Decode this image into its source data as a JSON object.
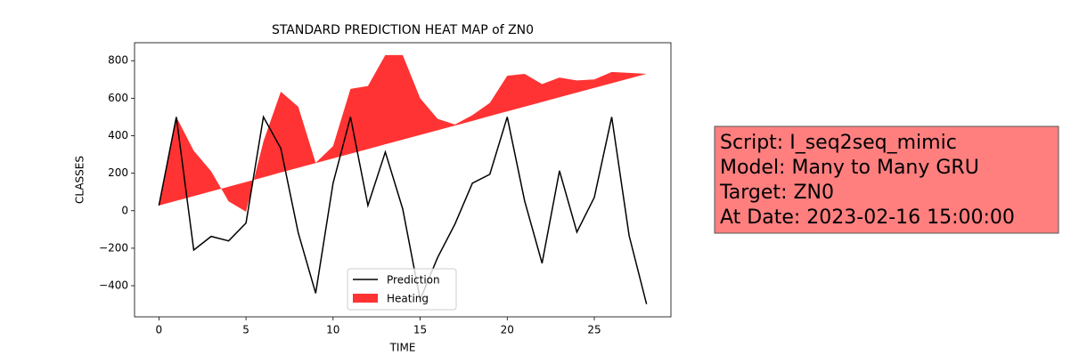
{
  "chart_data": {
    "type": "line",
    "title": "STANDARD PREDICTION HEAT MAP of ZN0",
    "x_label": "TIME",
    "y_label": "CLASSES",
    "x": [
      0,
      1,
      2,
      3,
      4,
      5,
      6,
      7,
      8,
      9,
      10,
      11,
      12,
      13,
      14,
      15,
      16,
      17,
      18,
      19,
      20,
      21,
      22,
      23,
      24,
      25,
      26,
      27,
      28
    ],
    "series": [
      {
        "name": "Prediction",
        "color": "#000000",
        "values": [
          28,
          500,
          -210,
          -137,
          -161,
          -66,
          500,
          332,
          -118,
          -440,
          147,
          500,
          28,
          313,
          9,
          -474,
          -250,
          -71,
          147,
          194,
          500,
          52,
          -280,
          213,
          -114,
          71,
          500,
          -133,
          -498
        ]
      },
      {
        "name": "Heating",
        "color": "#ff0000",
        "fill": true,
        "values": [
          28,
          500,
          320,
          210,
          50,
          -5,
          370,
          635,
          555,
          255,
          345,
          650,
          665,
          830,
          830,
          600,
          490,
          460,
          510,
          575,
          720,
          730,
          675,
          710,
          695,
          700,
          740,
          735,
          730
        ],
        "baseline": [
          28,
          53,
          78,
          103,
          128,
          153,
          178,
          204,
          229,
          254,
          279,
          304,
          329,
          354,
          379,
          404,
          429,
          454,
          479,
          505,
          530,
          555,
          580,
          605,
          630,
          655,
          680,
          705,
          730
        ]
      }
    ],
    "xlim": [
      -1.4,
      29.4
    ],
    "ylim": [
      -566,
      896
    ],
    "xticks": [
      0,
      5,
      10,
      15,
      20,
      25
    ],
    "yticks": [
      {
        "value": -400,
        "label": "−400"
      },
      {
        "value": -200,
        "label": "−200"
      },
      0,
      200,
      400,
      600,
      800
    ],
    "legend": "lower center",
    "annotation": [
      "Script: I_seq2seq_mimic",
      "Model: Many to Many GRU",
      "Target: ZN0",
      "At Date: 2023-02-16 15:00:00"
    ],
    "annotation_color": "#ff7f7f"
  }
}
